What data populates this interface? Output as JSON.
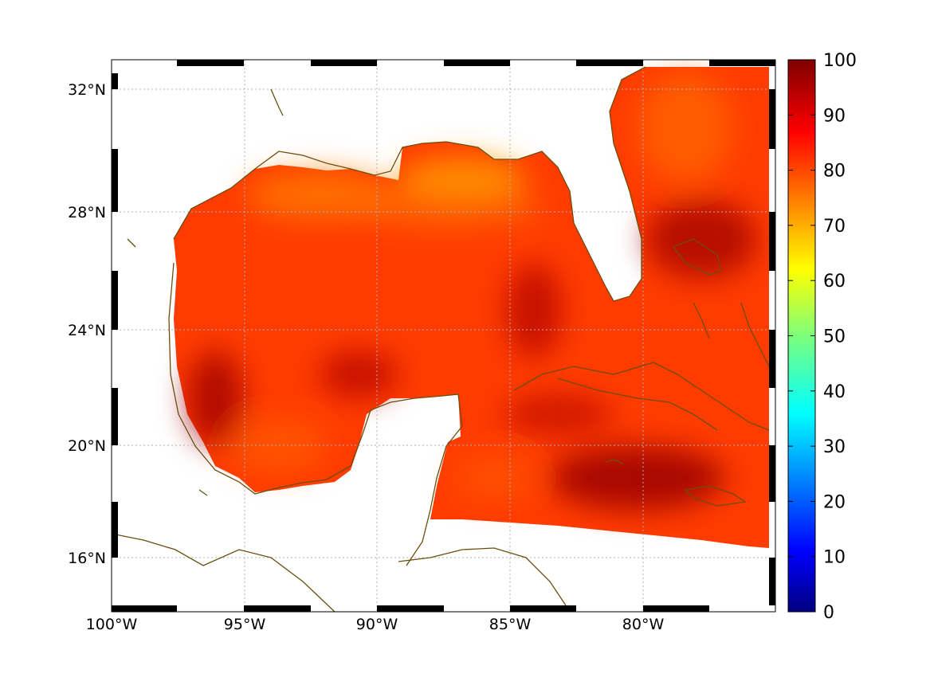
{
  "map": {
    "lon_range": [
      -100,
      -75
    ],
    "lat_range": [
      14.3,
      33.0
    ],
    "lon_ticks": [
      {
        "value": -100,
        "label": "100°W"
      },
      {
        "value": -95,
        "label": "95°W"
      },
      {
        "value": -90,
        "label": "90°W"
      },
      {
        "value": -85,
        "label": "85°W"
      },
      {
        "value": -80,
        "label": "80°W"
      }
    ],
    "lat_ticks": [
      {
        "value": 16,
        "label": "16°N"
      },
      {
        "value": 20,
        "label": "20°N"
      },
      {
        "value": 24,
        "label": "24°N"
      },
      {
        "value": 28,
        "label": "28°N"
      },
      {
        "value": 32,
        "label": "32°N"
      }
    ],
    "coastline_color": "#6b4e0e",
    "gridlines": true,
    "frame": "alternating black-white border"
  },
  "colorbar": {
    "min": 0,
    "max": 100,
    "colormap": "jet",
    "ticks": [
      "0",
      "10",
      "20",
      "30",
      "40",
      "50",
      "60",
      "70",
      "80",
      "90",
      "100"
    ],
    "position": "right"
  },
  "field": {
    "typical_value_range": [
      70,
      100
    ],
    "high_regions_above_95": [
      "Caribbean south of Cuba",
      "Atlantic east of Florida",
      "Bay of Campeche"
    ],
    "lower_regions_near_75": [
      "Northern Gulf shelf",
      "Northeast Atlantic near Georgia"
    ]
  }
}
